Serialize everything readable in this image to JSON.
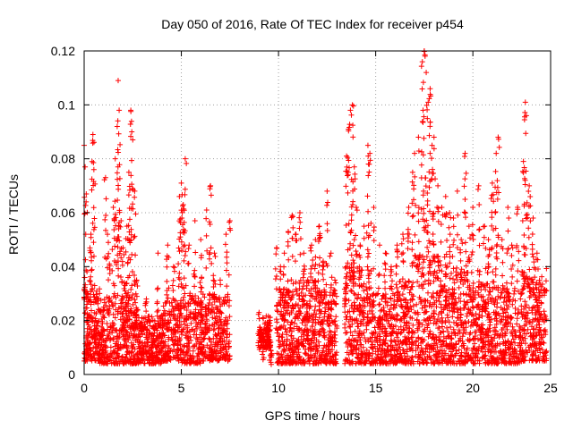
{
  "chart_data": {
    "type": "scatter",
    "title": "Day 050 of 2016, Rate Of TEC Index for receiver p454",
    "xlabel": "GPS time / hours",
    "ylabel": "ROTI / TECUs",
    "xlim": [
      0,
      24
    ],
    "ylim": [
      0,
      0.12
    ],
    "xticks": [
      0,
      5,
      10,
      15,
      20,
      25
    ],
    "xtick_labels": [
      "0",
      "5",
      "10",
      "15",
      "20",
      "25"
    ],
    "yticks": [
      0,
      0.02,
      0.04,
      0.06,
      0.08,
      0.1,
      0.12
    ],
    "ytick_labels": [
      "0",
      "0.02",
      "0.04",
      "0.06",
      "0.08",
      "0.1",
      "0.12"
    ],
    "grid": true,
    "marker": "plus",
    "marker_color": "#ff0000",
    "series": [
      {
        "name": "ROTI",
        "points": [
          [
            0.0,
            0.085
          ],
          [
            0.05,
            0.077
          ],
          [
            0.1,
            0.064
          ],
          [
            0.15,
            0.012
          ],
          [
            0.2,
            0.03
          ],
          [
            0.3,
            0.046
          ],
          [
            0.35,
            0.052
          ],
          [
            0.45,
            0.089
          ],
          [
            0.5,
            0.076
          ],
          [
            0.6,
            0.02
          ],
          [
            0.8,
            0.015
          ],
          [
            1.0,
            0.025
          ],
          [
            1.1,
            0.073
          ],
          [
            1.2,
            0.052
          ],
          [
            1.3,
            0.041
          ],
          [
            1.5,
            0.062
          ],
          [
            1.6,
            0.08
          ],
          [
            1.7,
            0.092
          ],
          [
            1.75,
            0.109
          ],
          [
            1.8,
            0.098
          ],
          [
            1.9,
            0.057
          ],
          [
            2.0,
            0.047
          ],
          [
            2.1,
            0.033
          ],
          [
            2.2,
            0.055
          ],
          [
            2.3,
            0.075
          ],
          [
            2.4,
            0.098
          ],
          [
            2.45,
            0.09
          ],
          [
            2.5,
            0.087
          ],
          [
            2.6,
            0.068
          ],
          [
            2.7,
            0.035
          ],
          [
            3.0,
            0.018
          ],
          [
            3.2,
            0.028
          ],
          [
            3.5,
            0.015
          ],
          [
            3.8,
            0.045
          ],
          [
            4.0,
            0.022
          ],
          [
            4.3,
            0.048
          ],
          [
            4.6,
            0.04
          ],
          [
            4.9,
            0.066
          ],
          [
            5.0,
            0.071
          ],
          [
            5.1,
            0.063
          ],
          [
            5.2,
            0.08
          ],
          [
            5.4,
            0.048
          ],
          [
            5.7,
            0.057
          ],
          [
            6.0,
            0.05
          ],
          [
            6.3,
            0.061
          ],
          [
            6.5,
            0.07
          ],
          [
            6.7,
            0.045
          ],
          [
            7.0,
            0.035
          ],
          [
            7.3,
            0.052
          ],
          [
            7.5,
            0.057
          ],
          [
            9.0,
            0.023
          ],
          [
            9.2,
            0.015
          ],
          [
            9.4,
            0.018
          ],
          [
            9.6,
            0.009
          ],
          [
            9.9,
            0.047
          ],
          [
            10.1,
            0.04
          ],
          [
            10.3,
            0.045
          ],
          [
            10.5,
            0.053
          ],
          [
            10.7,
            0.059
          ],
          [
            10.9,
            0.052
          ],
          [
            11.1,
            0.06
          ],
          [
            11.3,
            0.045
          ],
          [
            11.5,
            0.035
          ],
          [
            11.7,
            0.048
          ],
          [
            11.9,
            0.05
          ],
          [
            12.1,
            0.055
          ],
          [
            12.3,
            0.042
          ],
          [
            12.5,
            0.068
          ],
          [
            12.7,
            0.045
          ],
          [
            12.9,
            0.035
          ],
          [
            13.5,
            0.081
          ],
          [
            13.6,
            0.091
          ],
          [
            13.7,
            0.098
          ],
          [
            13.8,
            0.1
          ],
          [
            13.9,
            0.077
          ],
          [
            14.0,
            0.062
          ],
          [
            14.2,
            0.048
          ],
          [
            14.4,
            0.055
          ],
          [
            14.6,
            0.085
          ],
          [
            14.7,
            0.082
          ],
          [
            14.9,
            0.062
          ],
          [
            15.2,
            0.048
          ],
          [
            15.5,
            0.045
          ],
          [
            15.8,
            0.04
          ],
          [
            16.1,
            0.048
          ],
          [
            16.4,
            0.052
          ],
          [
            16.7,
            0.062
          ],
          [
            16.9,
            0.075
          ],
          [
            17.0,
            0.082
          ],
          [
            17.2,
            0.088
          ],
          [
            17.4,
            0.116
          ],
          [
            17.5,
            0.12
          ],
          [
            17.6,
            0.112
          ],
          [
            17.7,
            0.101
          ],
          [
            17.8,
            0.106
          ],
          [
            17.9,
            0.085
          ],
          [
            18.0,
            0.088
          ],
          [
            18.2,
            0.07
          ],
          [
            18.4,
            0.062
          ],
          [
            18.6,
            0.066
          ],
          [
            18.8,
            0.06
          ],
          [
            19.0,
            0.058
          ],
          [
            19.2,
            0.068
          ],
          [
            19.4,
            0.05
          ],
          [
            19.6,
            0.082
          ],
          [
            19.8,
            0.055
          ],
          [
            20.0,
            0.062
          ],
          [
            20.3,
            0.07
          ],
          [
            20.6,
            0.055
          ],
          [
            20.8,
            0.05
          ],
          [
            21.0,
            0.071
          ],
          [
            21.2,
            0.082
          ],
          [
            21.3,
            0.088
          ],
          [
            21.5,
            0.05
          ],
          [
            21.8,
            0.062
          ],
          [
            22.0,
            0.048
          ],
          [
            22.3,
            0.062
          ],
          [
            22.6,
            0.079
          ],
          [
            22.7,
            0.101
          ],
          [
            22.75,
            0.096
          ],
          [
            22.9,
            0.07
          ],
          [
            23.1,
            0.058
          ],
          [
            23.3,
            0.045
          ],
          [
            23.5,
            0.031
          ],
          [
            23.7,
            0.022
          ]
        ],
        "bands": [
          [
            0.0,
            0.8,
            0.005,
            0.032
          ],
          [
            0.8,
            2.8,
            0.004,
            0.03
          ],
          [
            2.8,
            4.0,
            0.004,
            0.022
          ],
          [
            4.0,
            5.0,
            0.005,
            0.028
          ],
          [
            5.0,
            6.0,
            0.004,
            0.03
          ],
          [
            6.0,
            7.5,
            0.005,
            0.03
          ],
          [
            9.0,
            9.6,
            0.01,
            0.022
          ],
          [
            9.9,
            11.0,
            0.004,
            0.032
          ],
          [
            11.0,
            12.0,
            0.004,
            0.035
          ],
          [
            12.0,
            13.0,
            0.004,
            0.032
          ],
          [
            13.4,
            14.8,
            0.004,
            0.04
          ],
          [
            14.8,
            16.0,
            0.004,
            0.03
          ],
          [
            16.0,
            17.0,
            0.004,
            0.035
          ],
          [
            17.0,
            18.5,
            0.004,
            0.045
          ],
          [
            18.5,
            20.0,
            0.004,
            0.04
          ],
          [
            20.0,
            21.5,
            0.004,
            0.035
          ],
          [
            21.5,
            22.5,
            0.004,
            0.032
          ],
          [
            22.5,
            23.8,
            0.005,
            0.04
          ]
        ]
      }
    ]
  }
}
